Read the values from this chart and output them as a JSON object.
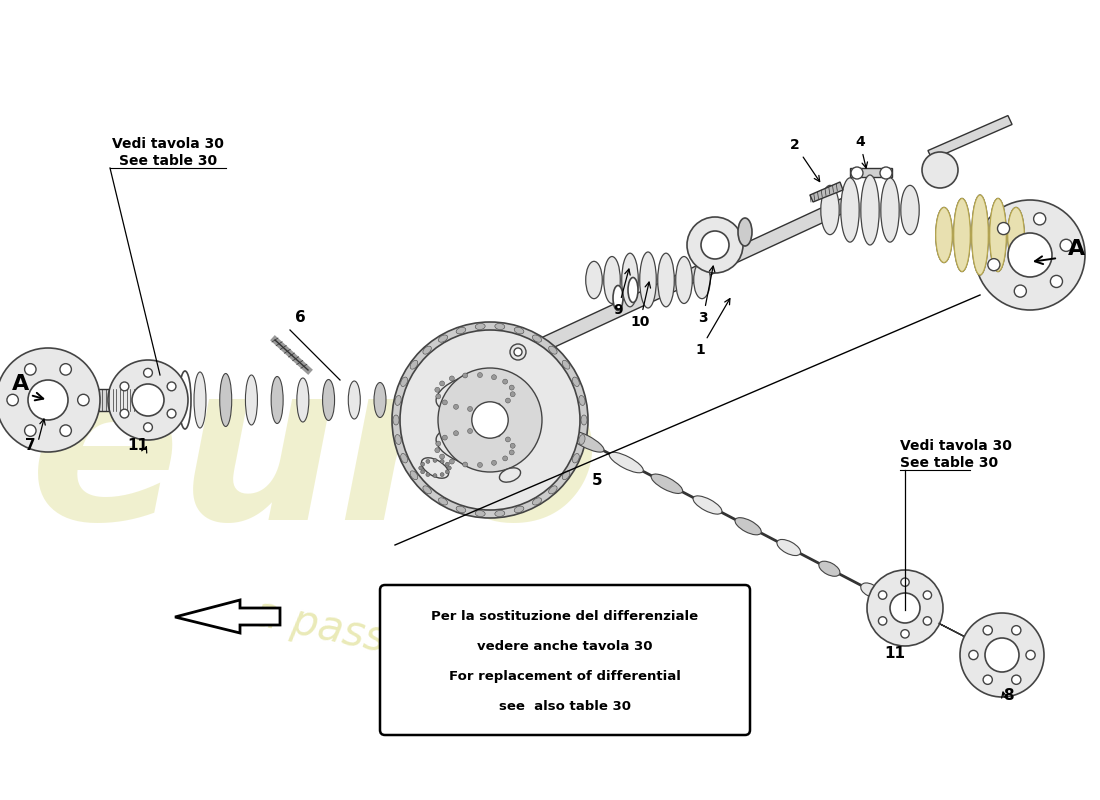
{
  "bg": "#ffffff",
  "note_line1": "Per la sostituzione del differenziale",
  "note_line2": "vedere anche tavola 30",
  "note_line3": "For replacement of differential",
  "note_line4": "see  also table 30",
  "vedi_left_1": "Vedi tavola 30",
  "vedi_left_2": "See table 30",
  "vedi_right_1": "Vedi tavola 30",
  "vedi_right_2": "See table 30",
  "label_A": "A",
  "wm_color": "#d0d060",
  "gc": "#e8e8e8",
  "ge": "#444444",
  "sc": "#d8d8d8",
  "se": "#333333",
  "lc": "#111111",
  "lw": 1.0
}
